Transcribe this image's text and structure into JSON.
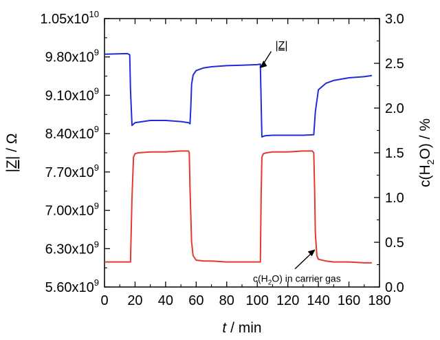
{
  "chart_data": {
    "type": "line",
    "xlabel_italic": "t",
    "xlabel_rest": " / min",
    "xlim": [
      0,
      180
    ],
    "x_ticks": [
      0,
      20,
      40,
      60,
      80,
      100,
      120,
      140,
      160,
      180
    ],
    "x_tick_labels": [
      "0",
      "20",
      "40",
      "60",
      "80",
      "100",
      "120",
      "140",
      "160",
      "180"
    ],
    "left_axis": {
      "label_main": "|Z|",
      "label_rest": " / Ω",
      "ylim": [
        5600000000.0,
        10500000000.0
      ],
      "ticks": [
        5600000000.0,
        6300000000.0,
        7000000000.0,
        7700000000.0,
        8400000000.0,
        9100000000.0,
        9800000000.0,
        10500000000.0
      ],
      "tick_labels": [
        {
          "mantissa": "5.60x10",
          "exp": "9"
        },
        {
          "mantissa": "6.30x10",
          "exp": "9"
        },
        {
          "mantissa": "7.00x10",
          "exp": "9"
        },
        {
          "mantissa": "7.70x10",
          "exp": "9"
        },
        {
          "mantissa": "8.40x10",
          "exp": "9"
        },
        {
          "mantissa": "9.10x10",
          "exp": "9"
        },
        {
          "mantissa": "9.80x10",
          "exp": "9"
        },
        {
          "mantissa": "1.05x10",
          "exp": "10"
        }
      ]
    },
    "right_axis": {
      "label_pre": "c(H",
      "label_sub": "2",
      "label_post": "O) / %",
      "ylim": [
        0.0,
        3.0
      ],
      "ticks": [
        0.0,
        0.5,
        1.0,
        1.5,
        2.0,
        2.5,
        3.0
      ],
      "tick_labels": [
        "0.0",
        "0.5",
        "1.0",
        "1.5",
        "2.0",
        "2.5",
        "3.0"
      ]
    },
    "series": [
      {
        "axis": "left",
        "color": "#1f2bd6",
        "x": [
          0,
          15,
          16.5,
          17,
          18,
          20,
          30,
          40,
          50,
          55,
          56,
          56.5,
          57,
          58,
          60,
          65,
          70,
          80,
          90,
          100,
          102,
          102.5,
          103,
          105,
          110,
          120,
          130,
          137,
          138,
          140,
          145,
          150,
          160,
          170,
          175
        ],
        "y": [
          9850000000.0,
          9860000000.0,
          9840000000.0,
          9200000000.0,
          8550000000.0,
          8600000000.0,
          8640000000.0,
          8640000000.0,
          8620000000.0,
          8600000000.0,
          8580000000.0,
          8900000000.0,
          9300000000.0,
          9470000000.0,
          9550000000.0,
          9600000000.0,
          9620000000.0,
          9640000000.0,
          9650000000.0,
          9660000000.0,
          9670000000.0,
          9000000000.0,
          8340000000.0,
          8360000000.0,
          8370000000.0,
          8370000000.0,
          8370000000.0,
          8380000000.0,
          8800000000.0,
          9200000000.0,
          9320000000.0,
          9370000000.0,
          9420000000.0,
          9440000000.0,
          9460000000.0
        ]
      },
      {
        "axis": "right",
        "color": "#e03a31",
        "x": [
          0,
          10,
          17,
          18,
          19,
          20,
          22,
          30,
          40,
          50,
          55,
          55.5,
          56,
          57,
          58,
          60,
          65,
          70,
          80,
          90,
          100,
          102,
          102.5,
          103,
          104,
          106,
          110,
          120,
          130,
          136,
          137,
          137.5,
          138,
          139,
          140,
          145,
          150,
          160,
          170,
          175
        ],
        "y": [
          0.28,
          0.28,
          0.28,
          1.0,
          1.45,
          1.49,
          1.5,
          1.51,
          1.51,
          1.52,
          1.52,
          1.5,
          1.1,
          0.5,
          0.35,
          0.3,
          0.29,
          0.29,
          0.28,
          0.28,
          0.28,
          0.28,
          1.0,
          1.45,
          1.49,
          1.5,
          1.51,
          1.51,
          1.52,
          1.52,
          1.5,
          1.1,
          0.6,
          0.35,
          0.31,
          0.29,
          0.28,
          0.28,
          0.27,
          0.27
        ]
      }
    ],
    "annotations": [
      {
        "label_main": "|Z|",
        "target": [
          101,
          9670000000.0
        ],
        "text_at": [
          110,
          10000000000.0
        ]
      },
      {
        "label_pre": "c(H",
        "label_sub": "2",
        "label_post": "O) in carrier gas",
        "target": [
          138,
          0.42
        ],
        "text_at": [
          122,
          0.08
        ]
      }
    ]
  }
}
